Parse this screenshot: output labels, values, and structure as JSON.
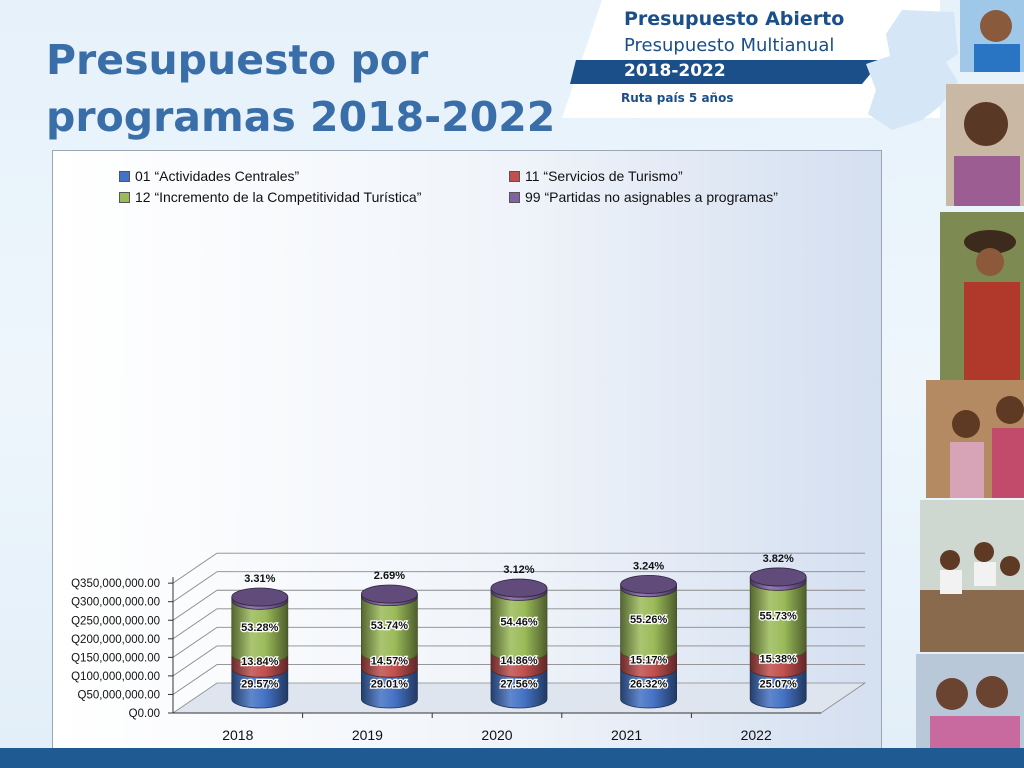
{
  "page": {
    "title_line1": "Presupuesto por",
    "title_line2": "programas 2018-2022"
  },
  "logo": {
    "title": "Presupuesto Abierto",
    "subtitle": "Presupuesto Multianual",
    "years": "2018-2022",
    "tagline": "Ruta país 5 años"
  },
  "colors": {
    "accent": "#3a6ea8",
    "series": [
      "#4472c4",
      "#c0504d",
      "#9bbb59",
      "#8064a2"
    ]
  },
  "chart_data": {
    "type": "bar",
    "stacked": true,
    "three_d": true,
    "categories": [
      "2018",
      "2019",
      "2020",
      "2021",
      "2022"
    ],
    "series": [
      {
        "name": "01 “Actividades Centrales”",
        "values": [
          83,
          83,
          83,
          83,
          83
        ],
        "labels": [
          "29.57%",
          "29.01%",
          "27.56%",
          "26.32%",
          "25.07%"
        ]
      },
      {
        "name": "11 “Servicios de Turismo”",
        "values": [
          38,
          41,
          44,
          47,
          51
        ],
        "labels": [
          "13.84%",
          "14.57%",
          "14.86%",
          "15.17%",
          "15.38%"
        ]
      },
      {
        "name": "12 “Incremento de la Competitividad Turística”",
        "values": [
          145,
          152,
          163,
          170,
          183
        ],
        "labels": [
          "53.28%",
          "53.74%",
          "54.46%",
          "55.26%",
          "55.73%"
        ]
      },
      {
        "name": "99 “Partidas no asignables a programas”",
        "values": [
          9,
          7,
          9,
          9,
          12
        ],
        "labels": [
          "3.31%",
          "2.69%",
          "3.12%",
          "3.24%",
          "3.82%"
        ]
      }
    ],
    "y_ticks": [
      "Q0.00",
      "Q50,000,000.00",
      "Q100,000,000.00",
      "Q150,000,000.00",
      "Q200,000,000.00",
      "Q250,000,000.00",
      "Q300,000,000.00",
      "Q350,000,000.00"
    ],
    "ylim": [
      0,
      350000000
    ],
    "value_unit_note": "values in millions of quetzales",
    "grid": true,
    "legend_position": "top"
  }
}
